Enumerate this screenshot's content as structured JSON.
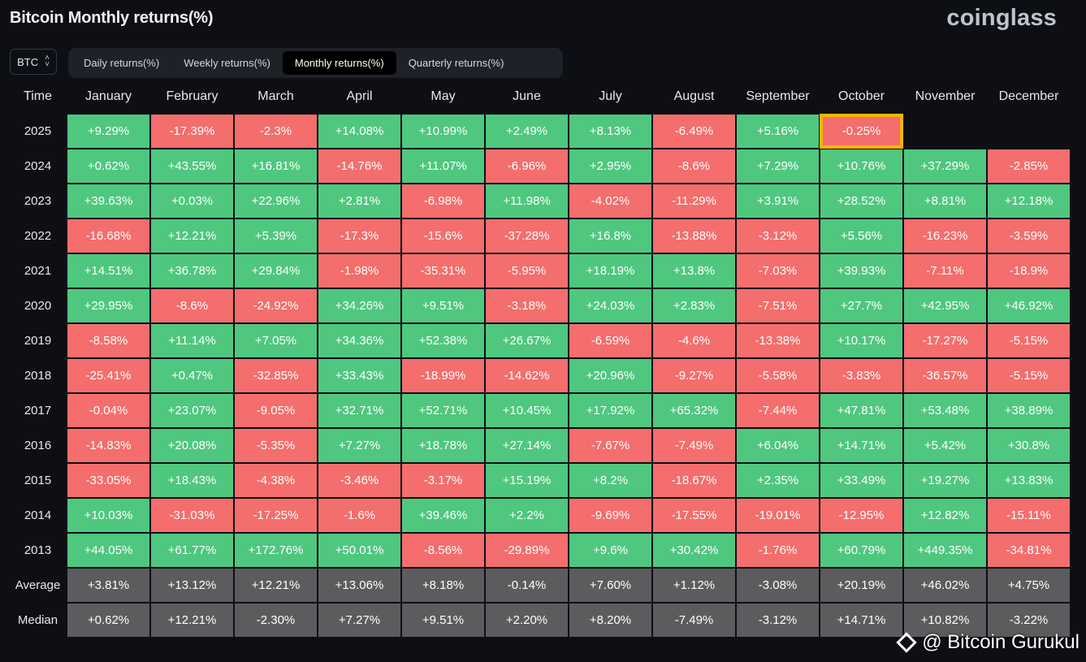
{
  "header": {
    "title": "Bitcoin Monthly returns(%)",
    "brand": "coinglass"
  },
  "coin_select": {
    "value": "BTC",
    "icon": "updown-chevron-icon"
  },
  "tabs": [
    {
      "label": "Daily returns(%)",
      "active": false
    },
    {
      "label": "Weekly returns(%)",
      "active": false
    },
    {
      "label": "Monthly returns(%)",
      "active": true
    },
    {
      "label": "Quarterly returns(%)",
      "active": false
    }
  ],
  "table": {
    "time_header": "Time",
    "months": [
      "January",
      "February",
      "March",
      "April",
      "May",
      "June",
      "July",
      "August",
      "September",
      "October",
      "November",
      "December"
    ],
    "rows": [
      {
        "year": "2025",
        "values": [
          "+9.29%",
          "-17.39%",
          "-2.3%",
          "+14.08%",
          "+10.99%",
          "+2.49%",
          "+8.13%",
          "-6.49%",
          "+5.16%",
          "-0.25%",
          "",
          ""
        ]
      },
      {
        "year": "2024",
        "values": [
          "+0.62%",
          "+43.55%",
          "+16.81%",
          "-14.76%",
          "+11.07%",
          "-6.96%",
          "+2.95%",
          "-8.6%",
          "+7.29%",
          "+10.76%",
          "+37.29%",
          "-2.85%"
        ]
      },
      {
        "year": "2023",
        "values": [
          "+39.63%",
          "+0.03%",
          "+22.96%",
          "+2.81%",
          "-6.98%",
          "+11.98%",
          "-4.02%",
          "-11.29%",
          "+3.91%",
          "+28.52%",
          "+8.81%",
          "+12.18%"
        ]
      },
      {
        "year": "2022",
        "values": [
          "-16.68%",
          "+12.21%",
          "+5.39%",
          "-17.3%",
          "-15.6%",
          "-37.28%",
          "+16.8%",
          "-13.88%",
          "-3.12%",
          "+5.56%",
          "-16.23%",
          "-3.59%"
        ]
      },
      {
        "year": "2021",
        "values": [
          "+14.51%",
          "+36.78%",
          "+29.84%",
          "-1.98%",
          "-35.31%",
          "-5.95%",
          "+18.19%",
          "+13.8%",
          "-7.03%",
          "+39.93%",
          "-7.11%",
          "-18.9%"
        ]
      },
      {
        "year": "2020",
        "values": [
          "+29.95%",
          "-8.6%",
          "-24.92%",
          "+34.26%",
          "+9.51%",
          "-3.18%",
          "+24.03%",
          "+2.83%",
          "-7.51%",
          "+27.7%",
          "+42.95%",
          "+46.92%"
        ]
      },
      {
        "year": "2019",
        "values": [
          "-8.58%",
          "+11.14%",
          "+7.05%",
          "+34.36%",
          "+52.38%",
          "+26.67%",
          "-6.59%",
          "-4.6%",
          "-13.38%",
          "+10.17%",
          "-17.27%",
          "-5.15%"
        ]
      },
      {
        "year": "2018",
        "values": [
          "-25.41%",
          "+0.47%",
          "-32.85%",
          "+33.43%",
          "-18.99%",
          "-14.62%",
          "+20.96%",
          "-9.27%",
          "-5.58%",
          "-3.83%",
          "-36.57%",
          "-5.15%"
        ]
      },
      {
        "year": "2017",
        "values": [
          "-0.04%",
          "+23.07%",
          "-9.05%",
          "+32.71%",
          "+52.71%",
          "+10.45%",
          "+17.92%",
          "+65.32%",
          "-7.44%",
          "+47.81%",
          "+53.48%",
          "+38.89%"
        ]
      },
      {
        "year": "2016",
        "values": [
          "-14.83%",
          "+20.08%",
          "-5.35%",
          "+7.27%",
          "+18.78%",
          "+27.14%",
          "-7.67%",
          "-7.49%",
          "+6.04%",
          "+14.71%",
          "+5.42%",
          "+30.8%"
        ]
      },
      {
        "year": "2015",
        "values": [
          "-33.05%",
          "+18.43%",
          "-4.38%",
          "-3.46%",
          "-3.17%",
          "+15.19%",
          "+8.2%",
          "-18.67%",
          "+2.35%",
          "+33.49%",
          "+19.27%",
          "+13.83%"
        ]
      },
      {
        "year": "2014",
        "values": [
          "+10.03%",
          "-31.03%",
          "-17.25%",
          "-1.6%",
          "+39.46%",
          "+2.2%",
          "-9.69%",
          "-17.55%",
          "-19.01%",
          "-12.95%",
          "+12.82%",
          "-15.11%"
        ]
      },
      {
        "year": "2013",
        "values": [
          "+44.05%",
          "+61.77%",
          "+172.76%",
          "+50.01%",
          "-8.56%",
          "-29.89%",
          "+9.6%",
          "+30.42%",
          "-1.76%",
          "+60.79%",
          "+449.35%",
          "-34.81%"
        ]
      }
    ],
    "stats": [
      {
        "label": "Average",
        "values": [
          "+3.81%",
          "+13.12%",
          "+12.21%",
          "+13.06%",
          "+8.18%",
          "-0.14%",
          "+7.60%",
          "+1.12%",
          "-3.08%",
          "+20.19%",
          "+46.02%",
          "+4.75%"
        ]
      },
      {
        "label": "Median",
        "values": [
          "+0.62%",
          "+12.21%",
          "-2.30%",
          "+7.27%",
          "+9.51%",
          "+2.20%",
          "+8.20%",
          "-7.49%",
          "-3.12%",
          "+14.71%",
          "+10.82%",
          "-3.22%"
        ]
      }
    ],
    "highlight": {
      "year": "2025",
      "month": "October"
    }
  },
  "colors": {
    "positive": "#4fc77f",
    "negative": "#f36e6c",
    "stat": "#5c5c5e",
    "highlight": "#f5b400"
  },
  "watermark": {
    "text": "@ Bitcoin Gurukul",
    "icon": "binance-diamond-icon"
  }
}
